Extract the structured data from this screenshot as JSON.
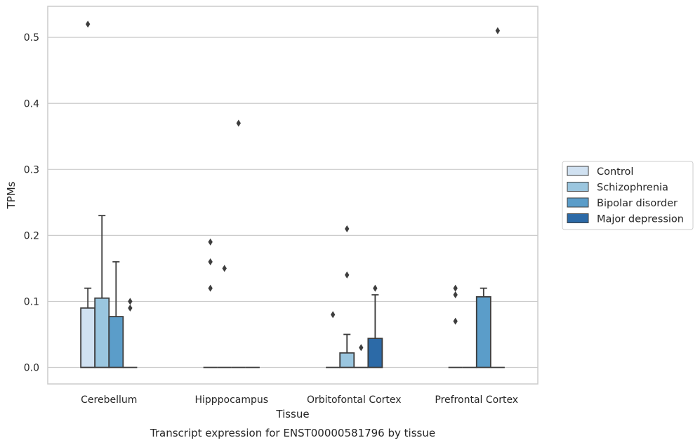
{
  "chart_data": {
    "type": "bar",
    "caption": "Transcript expression for ENST00000581796 by tissue",
    "xlabel": "Tissue",
    "ylabel": "TPMs",
    "ylim": [
      -0.025,
      0.547
    ],
    "yticks": [
      0.0,
      0.1,
      0.2,
      0.3,
      0.4,
      0.5
    ],
    "ytick_labels": [
      "0.0",
      "0.1",
      "0.2",
      "0.3",
      "0.4",
      "0.5"
    ],
    "grid": "horizontal",
    "legend_position": "right",
    "categories": [
      "Cerebellum",
      "Hipppocampus",
      "Orbitofontal Cortex",
      "Prefrontal Cortex"
    ],
    "series": [
      {
        "name": "Control",
        "color": "#d0e1f1",
        "values": [
          0.09,
          0.0,
          0.0,
          0.0
        ],
        "whisker_high": [
          0.12,
          null,
          null,
          null
        ],
        "outliers": [
          [
            0.52
          ],
          [
            0.19,
            0.16,
            0.12
          ],
          [
            0.08
          ],
          [
            0.12,
            0.11,
            0.07
          ]
        ]
      },
      {
        "name": "Schizophrenia",
        "color": "#9ac6df",
        "values": [
          0.105,
          0.0,
          0.022,
          0.0
        ],
        "whisker_high": [
          0.23,
          null,
          0.05,
          null
        ],
        "outliers": [
          [],
          [
            0.15
          ],
          [
            0.21,
            0.14
          ],
          []
        ]
      },
      {
        "name": "Bipolar disorder",
        "color": "#5b9dc9",
        "values": [
          0.077,
          0.0,
          0.0,
          0.107
        ],
        "whisker_high": [
          0.16,
          null,
          null,
          0.12
        ],
        "outliers": [
          [],
          [
            0.37
          ],
          [
            0.03
          ],
          []
        ]
      },
      {
        "name": "Major depression",
        "color": "#2c6aa7",
        "values": [
          0.0,
          0.0,
          0.044,
          0.0
        ],
        "whisker_high": [
          null,
          null,
          0.11,
          null
        ],
        "outliers": [
          [
            0.1,
            0.09
          ],
          [],
          [
            0.12
          ],
          [
            0.51
          ]
        ]
      }
    ]
  }
}
